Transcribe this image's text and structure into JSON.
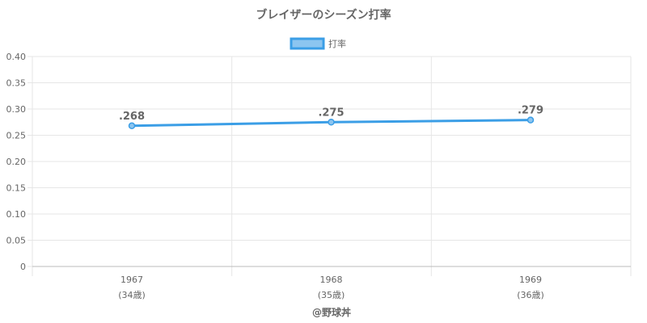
{
  "chart_data": {
    "type": "line",
    "title": "ブレイザーのシーズン打率",
    "categories": [
      "1967",
      "1968",
      "1969"
    ],
    "age_labels": [
      "(34歳)",
      "(35歳)",
      "(36歳)"
    ],
    "series": [
      {
        "name": "打率",
        "values": [
          0.268,
          0.275,
          0.279
        ],
        "labels": [
          ".268",
          ".275",
          ".279"
        ]
      }
    ],
    "ylim": [
      0,
      0.4
    ],
    "yticks": [
      0,
      0.05,
      0.1,
      0.15,
      0.2,
      0.25,
      0.3,
      0.35,
      0.4
    ],
    "ytick_labels": [
      "0",
      "0.05",
      "0.10",
      "0.15",
      "0.20",
      "0.25",
      "0.30",
      "0.35",
      "0.40"
    ],
    "grid": true,
    "legend_position": "top-center",
    "colors": {
      "line": "#3b9ee6",
      "legend_fill": "#8cc5f0",
      "grid": "#e6e6e6",
      "axis": "#bbbbbb",
      "text": "#666666"
    }
  },
  "credit": "@野球丼"
}
